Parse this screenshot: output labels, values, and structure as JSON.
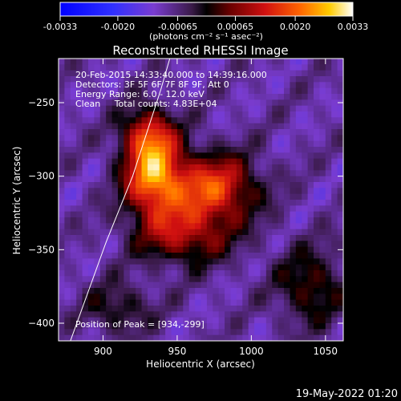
{
  "chart_data": {
    "type": "heatmap",
    "title": "Reconstructed RHESSI Image",
    "xlabel": "Heliocentric X (arcsec)",
    "ylabel": "Heliocentric Y (arcsec)",
    "xlim": [
      870,
      1062
    ],
    "ylim": [
      -412,
      -220
    ],
    "x_ticks": [
      900,
      950,
      1000,
      1050
    ],
    "x_tick_labels": [
      "900",
      "950",
      "1000",
      "1050"
    ],
    "y_ticks": [
      -250,
      -300,
      -350,
      -400
    ],
    "y_tick_labels": [
      "-250",
      "-300",
      "-350",
      "-400"
    ],
    "colorbar": {
      "range": [
        -0.0033,
        0.0033
      ],
      "ticks": [
        -0.0033,
        -0.002,
        -0.00065,
        0.00065,
        0.002,
        0.0033
      ],
      "tick_labels": [
        "-0.0033",
        "-0.0020",
        "-0.00065",
        "0.00065",
        "0.0020",
        "0.0033"
      ],
      "unit_label": "(photons cm⁻² s⁻¹ asec⁻²)"
    },
    "annotations": [
      "20-Feb-2015 14:33:40.000 to 14:39:16.000",
      "Detectors: 3F 5F 6F 7F 8F 9F, Att 0",
      "Energy Range: 6.0 - 12.0 keV",
      "Clean     Total counts: 4.83E+04",
      "Position of Peak = [934,-299]"
    ],
    "peak": {
      "x": 934,
      "y": -299
    },
    "sources": [
      {
        "x": 934,
        "y": -299,
        "amp": 0.0033,
        "sx": 14,
        "sy": 20
      },
      {
        "x": 975,
        "y": -308,
        "amp": 0.0026,
        "sx": 20,
        "sy": 16
      },
      {
        "x": 955,
        "y": -340,
        "amp": 0.0018,
        "sx": 22,
        "sy": 14
      },
      {
        "x": 930,
        "y": -270,
        "amp": 0.0017,
        "sx": 12,
        "sy": 12
      },
      {
        "x": 1040,
        "y": -375,
        "amp": 0.0013,
        "sx": 16,
        "sy": 18
      },
      {
        "x": 910,
        "y": -390,
        "amp": 0.001,
        "sx": 16,
        "sy": 12
      }
    ],
    "limb_line": [
      [
        878,
        -412
      ],
      [
        902,
        -345
      ],
      [
        920,
        -300
      ],
      [
        939,
        -241
      ],
      [
        945,
        -220
      ]
    ],
    "timestamp": "19-May-2022 01:20"
  }
}
